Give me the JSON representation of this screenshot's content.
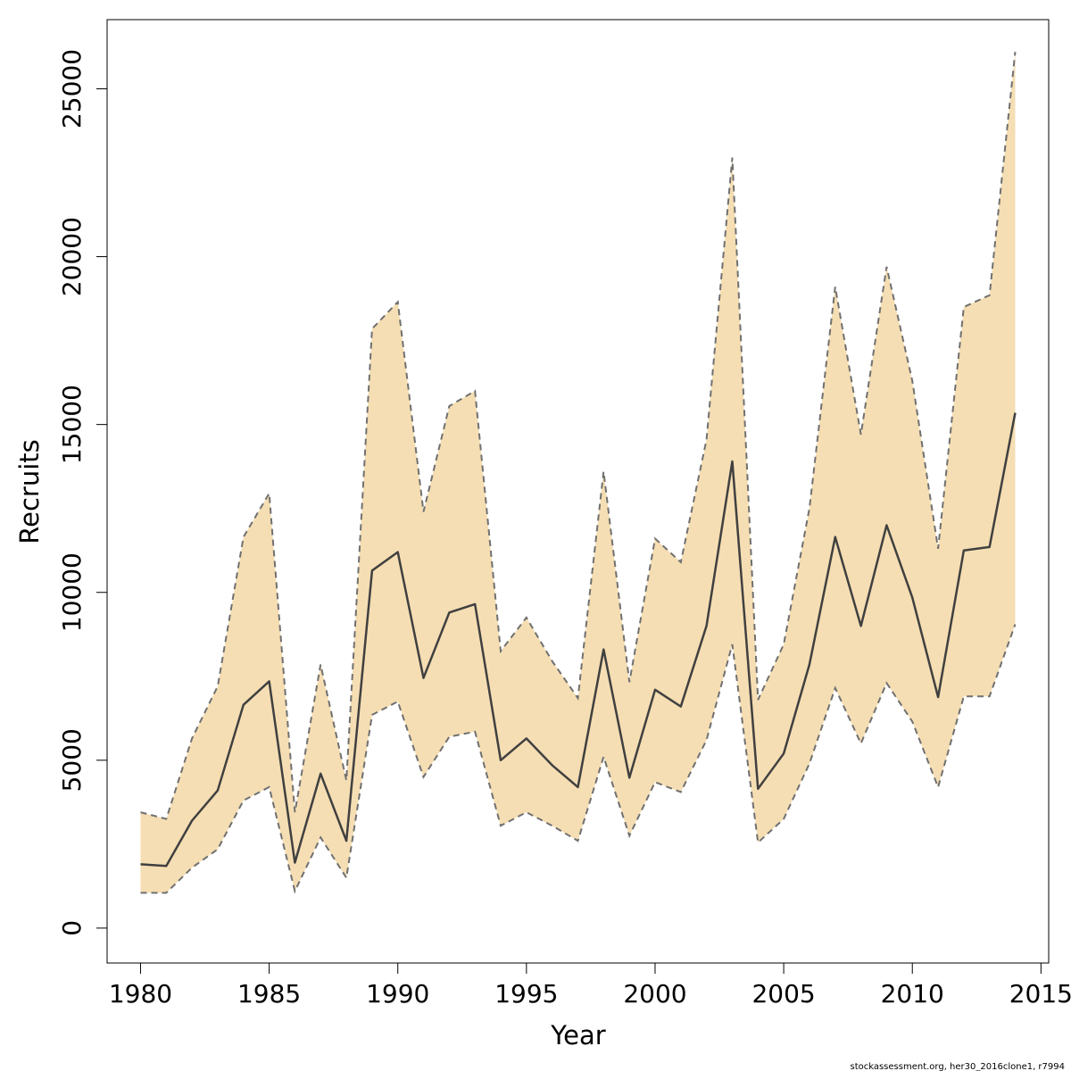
{
  "footnote": "stockassessment.org, her30_2016clone1, r7994",
  "chart_data": {
    "type": "area",
    "title": "",
    "xlabel": "Year",
    "ylabel": "Recruits",
    "xlim": [
      1978.7,
      2015.3
    ],
    "ylim": [
      -1040,
      27060
    ],
    "x_ticks": [
      1980,
      1985,
      1990,
      1995,
      2000,
      2005,
      2010,
      2015
    ],
    "y_ticks": [
      0,
      5000,
      10000,
      15000,
      20000,
      25000
    ],
    "grid": false,
    "legend": "none",
    "colors": {
      "band": "#f5deb3",
      "line": "#404040",
      "bound": "#707070",
      "frame": "#000000"
    },
    "x": [
      1980,
      1981,
      1982,
      1983,
      1984,
      1985,
      1986,
      1987,
      1988,
      1989,
      1990,
      1991,
      1992,
      1993,
      1994,
      1995,
      1996,
      1997,
      1998,
      1999,
      2000,
      2001,
      2002,
      2003,
      2004,
      2005,
      2006,
      2007,
      2008,
      2009,
      2010,
      2011,
      2012,
      2013,
      2014
    ],
    "series": [
      {
        "role": "estimate",
        "values": [
          1900,
          1850,
          3200,
          4100,
          6650,
          7350,
          1950,
          4600,
          2600,
          10650,
          11200,
          7450,
          9400,
          9650,
          5000,
          5650,
          4850,
          4200,
          8300,
          4480,
          7100,
          6600,
          9000,
          13900,
          4150,
          5200,
          7850,
          11650,
          9000,
          12000,
          9850,
          6880,
          11250,
          11350,
          15350
        ]
      },
      {
        "role": "upper",
        "values": [
          3450,
          3250,
          5650,
          7200,
          11650,
          12950,
          3450,
          7850,
          4400,
          17850,
          18650,
          12400,
          15550,
          16000,
          8250,
          9250,
          7950,
          6850,
          13600,
          7330,
          11600,
          10900,
          14550,
          22950,
          6800,
          8450,
          12500,
          19100,
          14700,
          19700,
          16300,
          11300,
          18500,
          18850,
          26100
        ]
      },
      {
        "role": "lower",
        "values": [
          1050,
          1050,
          1800,
          2350,
          3800,
          4200,
          1100,
          2700,
          1500,
          6350,
          6750,
          4500,
          5700,
          5850,
          3050,
          3450,
          3050,
          2600,
          5100,
          2750,
          4350,
          4050,
          5600,
          8450,
          2550,
          3250,
          4900,
          7150,
          5500,
          7300,
          6150,
          4200,
          6900,
          6900,
          9050
        ]
      }
    ]
  }
}
